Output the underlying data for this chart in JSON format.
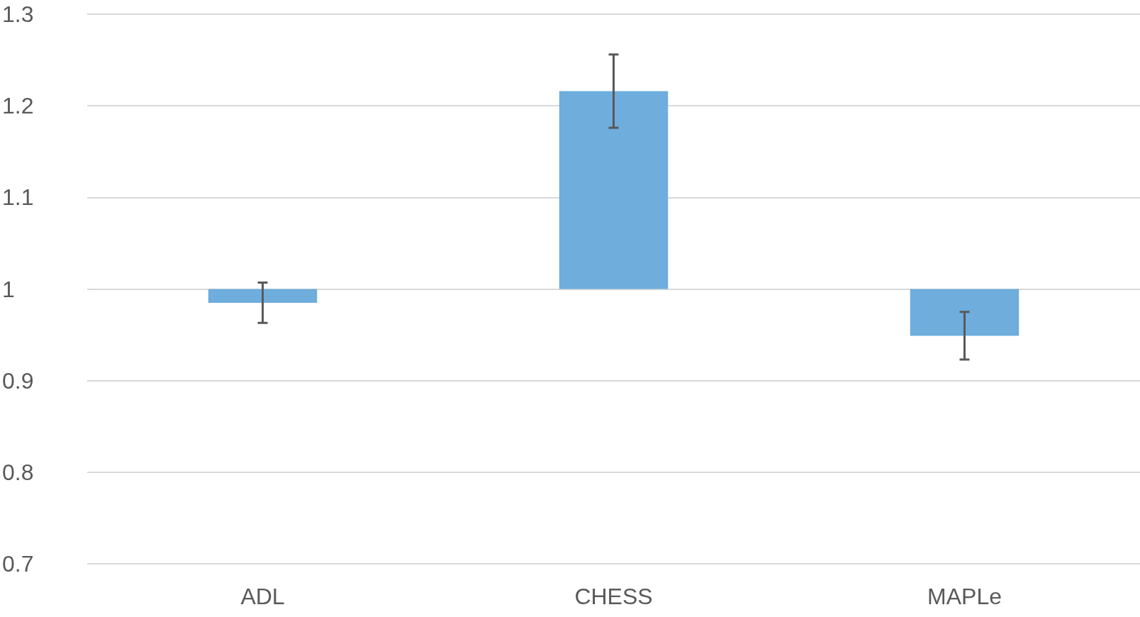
{
  "chart_data": {
    "type": "bar",
    "categories": [
      "ADL",
      "CHESS",
      "MAPLe"
    ],
    "base": [
      1,
      1,
      1
    ],
    "values": [
      -0.015,
      0.216,
      -0.051
    ],
    "errors": [
      0.022,
      0.04,
      0.026
    ],
    "color": "#6eaddc",
    "ylim": [
      0.7,
      1.3
    ],
    "yticks": [
      0.7,
      0.8,
      0.9,
      1,
      1.1,
      1.2,
      1.3
    ],
    "grid": "y",
    "legend": false
  }
}
